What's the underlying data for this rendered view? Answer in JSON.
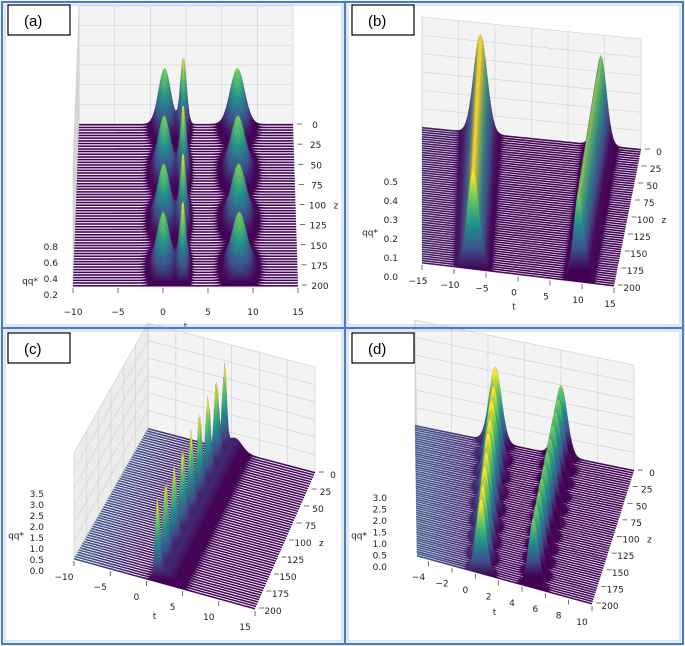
{
  "colors": {
    "frame": "#4a7cc4",
    "floor": "#440154",
    "wall": "#f2f2f2",
    "grid": "#d0d0d0"
  },
  "chart_data": [
    {
      "type": "surface",
      "panel_label": "(a)",
      "xlabel": "t",
      "ylabel": "z",
      "zlabel": "qq*",
      "xlim": [
        -10,
        15
      ],
      "ylim": [
        0,
        200
      ],
      "zlim": [
        0.2,
        0.9
      ],
      "baseline": 0.1,
      "x_ticks": [
        "-10",
        "-5",
        "0",
        "5",
        "10",
        "15"
      ],
      "y_ticks": [
        "0",
        "25",
        "50",
        "75",
        "100",
        "125",
        "150",
        "175",
        "200"
      ],
      "z_ticks": [
        "0.2",
        "0.4",
        "0.6",
        "0.8"
      ],
      "ridges": [
        {
          "t": 0,
          "amplitude": 0.7,
          "width": 1.0,
          "z_period": 60
        },
        {
          "t": 2.2,
          "amplitude": 0.85,
          "width": 0.5,
          "z_period": 60
        },
        {
          "t": 8.5,
          "amplitude": 0.7,
          "width": 1.2,
          "z_period": 60
        }
      ]
    },
    {
      "type": "surface",
      "panel_label": "(b)",
      "xlabel": "t",
      "ylabel": "z",
      "zlabel": "qq*",
      "xlim": [
        -15,
        15
      ],
      "ylim": [
        0,
        200
      ],
      "zlim": [
        0.0,
        0.5
      ],
      "baseline": 0.0,
      "x_ticks": [
        "-15",
        "-10",
        "-5",
        "0",
        "5",
        "10",
        "15"
      ],
      "y_ticks": [
        "0",
        "25",
        "50",
        "75",
        "100",
        "125",
        "150",
        "175",
        "200"
      ],
      "z_ticks": [
        "0.0",
        "0.1",
        "0.2",
        "0.3",
        "0.4",
        "0.5"
      ],
      "ridges": [
        {
          "t": -7,
          "amplitude": 0.55,
          "width": 1.3,
          "z_period": 0
        },
        {
          "t": 9.5,
          "amplitude": 0.5,
          "width": 1.1,
          "z_period": 0
        }
      ]
    },
    {
      "type": "surface",
      "panel_label": "(c)",
      "xlabel": "t",
      "ylabel": "z",
      "zlabel": "qq*",
      "xlim": [
        -10,
        15
      ],
      "ylim": [
        0,
        200
      ],
      "zlim": [
        0.0,
        3.5
      ],
      "baseline": 0.0,
      "x_ticks": [
        "-10",
        "-5",
        "0",
        "5",
        "10",
        "15"
      ],
      "y_ticks": [
        "0",
        "25",
        "50",
        "75",
        "100",
        "125",
        "150",
        "175",
        "200"
      ],
      "z_ticks": [
        "0.0",
        "0.5",
        "1.0",
        "1.5",
        "2.0",
        "2.5",
        "3.0",
        "3.5"
      ],
      "ridges": [
        {
          "t": 1.5,
          "amplitude": 3.7,
          "width": 0.4,
          "z_period": 25
        },
        {
          "t": 3.0,
          "amplitude": 0.6,
          "width": 1.5,
          "z_period": 0
        }
      ]
    },
    {
      "type": "surface",
      "panel_label": "(d)",
      "xlabel": "t",
      "ylabel": "z",
      "zlabel": "qq*",
      "xlim": [
        -5,
        10
      ],
      "ylim": [
        0,
        200
      ],
      "zlim": [
        0.0,
        3.0
      ],
      "baseline": 0.0,
      "x_ticks": [
        "-4",
        "-2",
        "0",
        "2",
        "4",
        "6",
        "8",
        "10"
      ],
      "y_ticks": [
        "0",
        "25",
        "50",
        "75",
        "100",
        "125",
        "150",
        "175",
        "200"
      ],
      "z_ticks": [
        "0.0",
        "0.5",
        "1.0",
        "1.5",
        "2.0",
        "2.5",
        "3.0"
      ],
      "ridges": [
        {
          "t": 0.5,
          "amplitude": 3.0,
          "width": 0.6,
          "z_period": 25
        },
        {
          "t": 5.0,
          "amplitude": 2.8,
          "width": 0.6,
          "z_period": 20
        }
      ]
    }
  ]
}
